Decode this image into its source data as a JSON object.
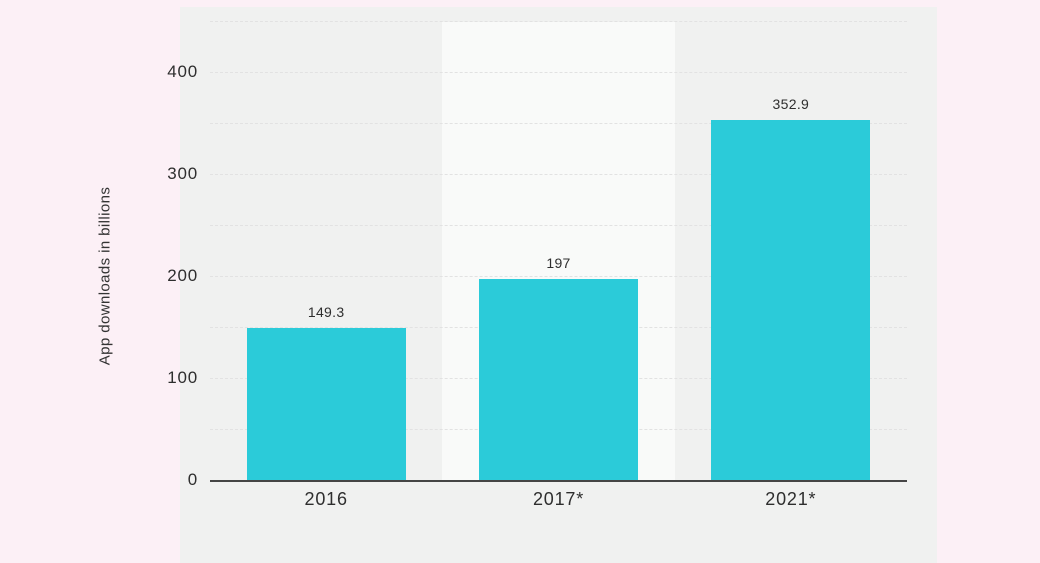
{
  "chart_data": {
    "type": "bar",
    "title": "",
    "xlabel": "",
    "ylabel": "App downloads in billions",
    "categories": [
      "2016",
      "2017*",
      "2021*"
    ],
    "values": [
      149.3,
      197,
      352.9
    ],
    "value_labels": [
      "149.3",
      "197",
      "352.9"
    ],
    "ylim": [
      0,
      450
    ],
    "yticks": [
      0,
      100,
      200,
      300,
      400
    ],
    "ytick_labels": [
      "0",
      "100",
      "200",
      "300",
      "400"
    ],
    "gridline_step": 50,
    "grid": true,
    "legend": null,
    "highlighted_category": "2017*",
    "colors": {
      "bar": "#2bcbd9",
      "page_background": "#fcf0f6",
      "panel_background": "#f0f1f0",
      "highlight_band": "#f9faf9",
      "gridline": "#e2e2e2",
      "axis_line": "#454545",
      "text": "#2e2e2e"
    }
  }
}
